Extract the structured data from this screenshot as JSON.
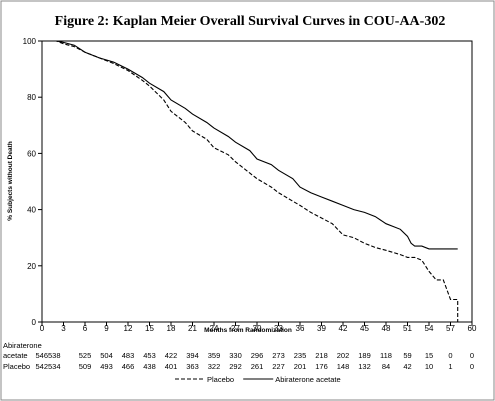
{
  "figure_title": "Figure 2: Kaplan Meier Overall Survival Curves in COU-AA-302",
  "chart_data": {
    "type": "line",
    "title": "",
    "xlabel": "Months from Randomization",
    "ylabel": "% Subjects without Death",
    "xlim": [
      0,
      60
    ],
    "ylim": [
      0,
      100
    ],
    "x_ticks": [
      0,
      3,
      6,
      9,
      12,
      15,
      18,
      21,
      24,
      27,
      30,
      33,
      36,
      39,
      42,
      45,
      48,
      51,
      54,
      57,
      60
    ],
    "y_ticks": [
      0,
      20,
      40,
      60,
      80,
      100
    ],
    "grid": false,
    "legend_position": "bottom",
    "series": [
      {
        "name": "Abiraterone acetate",
        "style": "solid",
        "color": "#000000",
        "points": [
          [
            0,
            100
          ],
          [
            2,
            100
          ],
          [
            3,
            99.5
          ],
          [
            4.5,
            98.5
          ],
          [
            6,
            96
          ],
          [
            8,
            94
          ],
          [
            10,
            92.5
          ],
          [
            12,
            90
          ],
          [
            14,
            87
          ],
          [
            15,
            85
          ],
          [
            17,
            82
          ],
          [
            18,
            79
          ],
          [
            20,
            76
          ],
          [
            21,
            74
          ],
          [
            23,
            71
          ],
          [
            24,
            69
          ],
          [
            26,
            66
          ],
          [
            27,
            64
          ],
          [
            29,
            61
          ],
          [
            30,
            58
          ],
          [
            32,
            56
          ],
          [
            33,
            54
          ],
          [
            35,
            51
          ],
          [
            36,
            48
          ],
          [
            37.5,
            46
          ],
          [
            39,
            44.5
          ],
          [
            40.5,
            43
          ],
          [
            42,
            41.5
          ],
          [
            43.5,
            40
          ],
          [
            45,
            39
          ],
          [
            46.5,
            37.5
          ],
          [
            48,
            35
          ],
          [
            49,
            34
          ],
          [
            50,
            33
          ],
          [
            51,
            30.5
          ],
          [
            51.5,
            28
          ],
          [
            52,
            27
          ],
          [
            52.5,
            27
          ],
          [
            53,
            27
          ],
          [
            54,
            26
          ],
          [
            56,
            26
          ],
          [
            58,
            26
          ]
        ]
      },
      {
        "name": "Placebo",
        "style": "dashed",
        "color": "#000000",
        "points": [
          [
            0,
            100
          ],
          [
            2,
            100
          ],
          [
            3,
            99
          ],
          [
            4.5,
            98
          ],
          [
            6,
            96
          ],
          [
            8,
            94
          ],
          [
            10,
            92
          ],
          [
            12,
            89.5
          ],
          [
            14,
            86
          ],
          [
            15,
            84
          ],
          [
            17,
            79
          ],
          [
            18,
            75
          ],
          [
            20,
            71
          ],
          [
            21,
            68
          ],
          [
            23,
            65
          ],
          [
            24,
            62
          ],
          [
            26,
            59.5
          ],
          [
            27,
            57
          ],
          [
            29,
            53
          ],
          [
            30,
            51
          ],
          [
            32,
            48
          ],
          [
            33,
            46
          ],
          [
            35,
            43
          ],
          [
            36,
            41.5
          ],
          [
            37.5,
            39
          ],
          [
            39,
            37
          ],
          [
            40.5,
            35
          ],
          [
            42,
            31
          ],
          [
            43.5,
            30
          ],
          [
            45,
            28
          ],
          [
            46.5,
            26.5
          ],
          [
            48,
            25.5
          ],
          [
            50,
            24
          ],
          [
            51,
            23
          ],
          [
            52,
            23
          ],
          [
            53,
            22
          ],
          [
            54,
            18
          ],
          [
            55,
            15
          ],
          [
            56,
            15
          ],
          [
            57,
            8
          ],
          [
            58,
            8
          ],
          [
            58,
            0
          ]
        ]
      }
    ]
  },
  "risk_table": {
    "header": "Abiraterone",
    "rows": [
      {
        "label": "acetate",
        "values": [
          "546538",
          "525",
          "504",
          "483",
          "453",
          "422",
          "394",
          "359",
          "330",
          "296",
          "273",
          "235",
          "218",
          "202",
          "189",
          "118",
          "59",
          "15",
          "0",
          "0"
        ]
      },
      {
        "label": "Placebo",
        "values": [
          "542534",
          "509",
          "493",
          "466",
          "438",
          "401",
          "363",
          "322",
          "292",
          "261",
          "227",
          "201",
          "176",
          "148",
          "132",
          "84",
          "42",
          "10",
          "1",
          "0"
        ]
      }
    ]
  },
  "legend": {
    "items": [
      {
        "label": "Placebo",
        "style": "dashed"
      },
      {
        "label": "Abiraterone acetate",
        "style": "solid"
      }
    ]
  }
}
